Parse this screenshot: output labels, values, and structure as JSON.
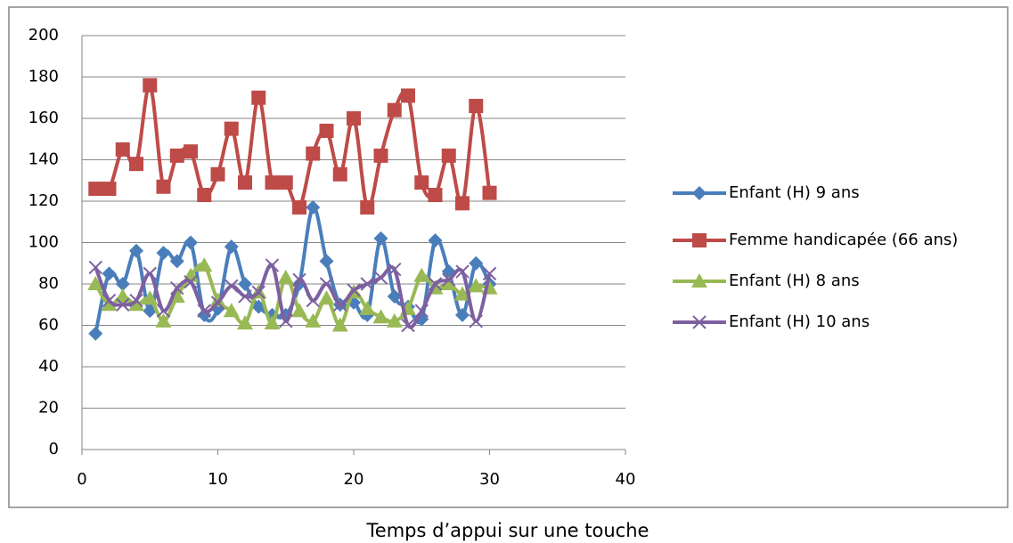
{
  "chart_data": {
    "type": "line",
    "x_label": "Temps d’appui sur une touche",
    "x": [
      1,
      2,
      3,
      4,
      5,
      6,
      7,
      8,
      9,
      10,
      11,
      12,
      13,
      14,
      15,
      16,
      17,
      18,
      19,
      20,
      21,
      22,
      23,
      24,
      25,
      26,
      27,
      28,
      29,
      30
    ],
    "series": [
      {
        "name": "Enfant (H) 9 ans",
        "color": "#4a7ebb",
        "marker": "diamond",
        "values": [
          56,
          85,
          80,
          96,
          67,
          95,
          91,
          100,
          65,
          68,
          98,
          80,
          69,
          65,
          65,
          80,
          117,
          91,
          70,
          71,
          65,
          102,
          74,
          69,
          63,
          101,
          86,
          65,
          90,
          80
        ]
      },
      {
        "name": "Femme handicapée (66 ans)",
        "color": "#be4b48",
        "marker": "square",
        "values": [
          126,
          126,
          145,
          138,
          176,
          127,
          142,
          144,
          123,
          133,
          155,
          129,
          170,
          129,
          129,
          117,
          143,
          154,
          133,
          160,
          117,
          142,
          164,
          171,
          129,
          123,
          142,
          119,
          166,
          124
        ]
      },
      {
        "name": "Enfant (H) 8 ans",
        "color": "#98b954",
        "marker": "triangle",
        "values": [
          80,
          70,
          74,
          70,
          73,
          62,
          74,
          84,
          89,
          72,
          67,
          61,
          76,
          61,
          83,
          67,
          62,
          73,
          60,
          76,
          68,
          64,
          62,
          68,
          84,
          78,
          80,
          75,
          79,
          78
        ]
      },
      {
        "name": "Enfant (H) 10 ans",
        "color": "#7d60a0",
        "marker": "x",
        "values": [
          88,
          72,
          70,
          72,
          85,
          67,
          78,
          81,
          67,
          71,
          79,
          74,
          76,
          89,
          62,
          82,
          72,
          80,
          70,
          77,
          80,
          83,
          87,
          60,
          67,
          80,
          82,
          86,
          62,
          85
        ]
      }
    ],
    "xlim": [
      0,
      40
    ],
    "xticks": [
      0,
      10,
      20,
      30,
      40
    ],
    "ylim": [
      0,
      200
    ],
    "yticks": [
      0,
      20,
      40,
      60,
      80,
      100,
      120,
      140,
      160,
      180,
      200
    ],
    "grid": true,
    "legend": "right",
    "smooth": true
  }
}
